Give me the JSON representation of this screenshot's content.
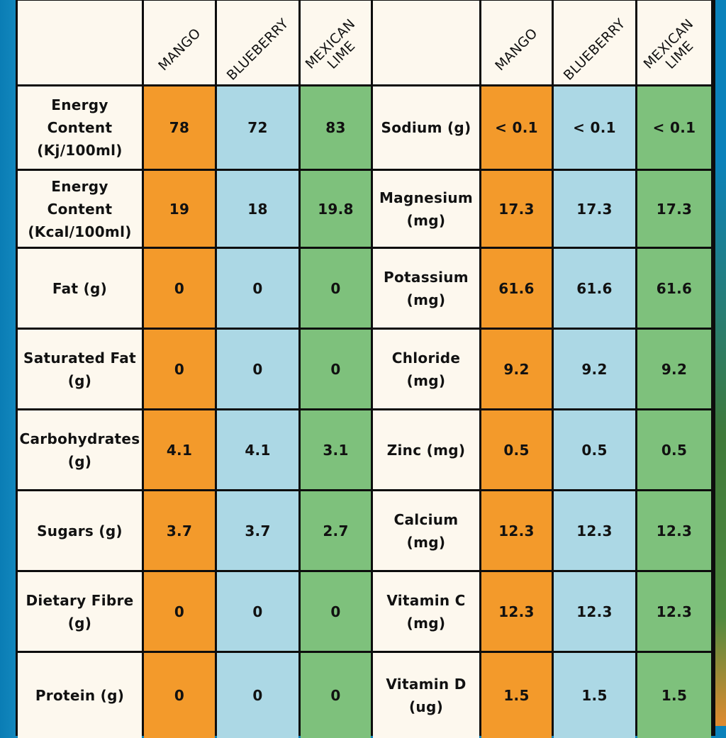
{
  "header": {
    "corner_left": "",
    "corner_right": "",
    "flavors": [
      "MANGO",
      "BLUEBERRY",
      "MEXICAN\nLIME"
    ]
  },
  "colors": {
    "mango": "#f39a2b",
    "blueberry": "#acd8e5",
    "lime": "#7ec17c",
    "label_bg": "#fdf8ee"
  },
  "rows": [
    {
      "left_label": "Energy\nContent\n(Kj/100ml)",
      "left_values": [
        "78",
        "72",
        "83"
      ],
      "right_label": "Sodium (g)",
      "right_values": [
        "< 0.1",
        "< 0.1",
        "< 0.1"
      ]
    },
    {
      "left_label": "Energy\nContent\n(Kcal/100ml)",
      "left_values": [
        "19",
        "18",
        "19.8"
      ],
      "right_label": "Magnesium\n(mg)",
      "right_values": [
        "17.3",
        "17.3",
        "17.3"
      ]
    },
    {
      "left_label": "Fat (g)",
      "left_values": [
        "0",
        "0",
        "0"
      ],
      "right_label": "Potassium\n(mg)",
      "right_values": [
        "61.6",
        "61.6",
        "61.6"
      ]
    },
    {
      "left_label": "Saturated Fat\n(g)",
      "left_values": [
        "0",
        "0",
        "0"
      ],
      "right_label": "Chloride\n(mg)",
      "right_values": [
        "9.2",
        "9.2",
        "9.2"
      ]
    },
    {
      "left_label": "Carbohydrates\n(g)",
      "left_values": [
        "4.1",
        "4.1",
        "3.1"
      ],
      "right_label": "Zinc (mg)",
      "right_values": [
        "0.5",
        "0.5",
        "0.5"
      ]
    },
    {
      "left_label": "Sugars (g)",
      "left_values": [
        "3.7",
        "3.7",
        "2.7"
      ],
      "right_label": "Calcium\n(mg)",
      "right_values": [
        "12.3",
        "12.3",
        "12.3"
      ]
    },
    {
      "left_label": "Dietary Fibre\n(g)",
      "left_values": [
        "0",
        "0",
        "0"
      ],
      "right_label": "Vitamin C\n(mg)",
      "right_values": [
        "12.3",
        "12.3",
        "12.3"
      ]
    },
    {
      "left_label": "Protein (g)",
      "left_values": [
        "0",
        "0",
        "0"
      ],
      "right_label": "Vitamin D\n(ug)",
      "right_values": [
        "1.5",
        "1.5",
        "1.5"
      ]
    }
  ]
}
